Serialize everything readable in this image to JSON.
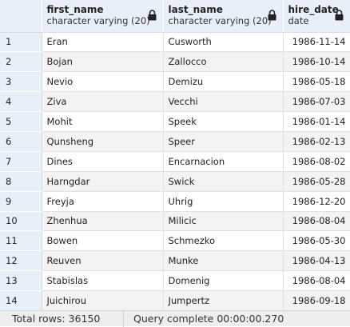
{
  "columns": [
    {
      "name": "first_name",
      "type": "character varying (20)"
    },
    {
      "name": "last_name",
      "type": "character varying (20)"
    },
    {
      "name": "hire_date",
      "type": "date"
    }
  ],
  "rows": [
    {
      "n": "1",
      "first": "Eran",
      "last": "Cusworth",
      "hire": "1986-11-14"
    },
    {
      "n": "2",
      "first": "Bojan",
      "last": "Zallocco",
      "hire": "1986-10-14"
    },
    {
      "n": "3",
      "first": "Nevio",
      "last": "Demizu",
      "hire": "1986-05-18"
    },
    {
      "n": "4",
      "first": "Ziva",
      "last": "Vecchi",
      "hire": "1986-07-03"
    },
    {
      "n": "5",
      "first": "Mohit",
      "last": "Speek",
      "hire": "1986-01-14"
    },
    {
      "n": "6",
      "first": "Qunsheng",
      "last": "Speer",
      "hire": "1986-02-13"
    },
    {
      "n": "7",
      "first": "Dines",
      "last": "Encarnacion",
      "hire": "1986-08-02"
    },
    {
      "n": "8",
      "first": "Harngdar",
      "last": "Swick",
      "hire": "1986-05-28"
    },
    {
      "n": "9",
      "first": "Freyja",
      "last": "Uhrig",
      "hire": "1986-12-20"
    },
    {
      "n": "10",
      "first": "Zhenhua",
      "last": "Milicic",
      "hire": "1986-08-04"
    },
    {
      "n": "11",
      "first": "Bowen",
      "last": "Schmezko",
      "hire": "1986-05-30"
    },
    {
      "n": "12",
      "first": "Reuven",
      "last": "Munke",
      "hire": "1986-04-13"
    },
    {
      "n": "13",
      "first": "Stabislas",
      "last": "Domenig",
      "hire": "1986-08-04"
    },
    {
      "n": "14",
      "first": "Juichirou",
      "last": "Jumpertz",
      "hire": "1986-09-18"
    }
  ],
  "status": {
    "total_rows": "Total rows: 36150",
    "query": "Query complete 00:00:00.270"
  },
  "icons": {
    "column_lock": "lock-icon"
  },
  "colors": {
    "header_bg": "#e8eff8",
    "stripe": "#f3f3f3"
  }
}
